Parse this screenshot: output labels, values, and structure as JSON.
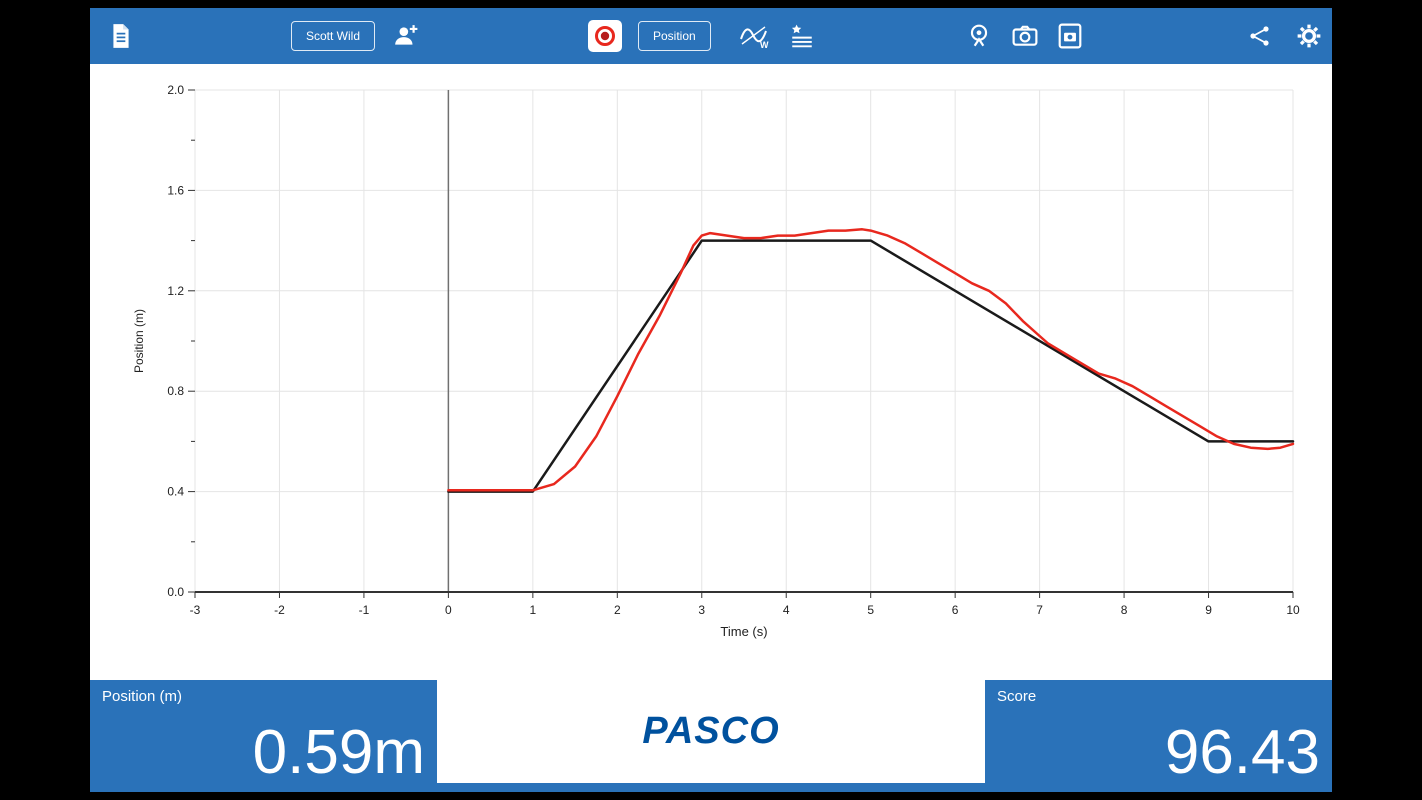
{
  "colors": {
    "toolbar_blue": "#2a72b9",
    "record_red": "#e8281e",
    "target_line": "#1a1a1a",
    "measured_line": "#e8281e",
    "pasco_blue": "#00519e"
  },
  "toolbar": {
    "user_button": "Scott Wild",
    "position_button": "Position",
    "icons": [
      "document-icon",
      "add-user-icon",
      "record-icon",
      "match-graph-icon",
      "journal-icon",
      "sensor-icon",
      "camera-icon",
      "snapshot-icon",
      "share-icon",
      "settings-icon"
    ]
  },
  "chart_data": {
    "type": "line",
    "title": "",
    "xlabel": "Time (s)",
    "ylabel": "Position (m)",
    "xlim": [
      -3,
      10
    ],
    "ylim": [
      0,
      2
    ],
    "x_ticks": [
      -3,
      -2,
      -1,
      0,
      1,
      2,
      3,
      4,
      5,
      6,
      7,
      8,
      9,
      10
    ],
    "y_ticks": [
      0.0,
      0.4,
      0.8,
      1.2,
      1.6,
      2.0
    ],
    "grid": true,
    "legend": "none",
    "series": [
      {
        "name": "target-path",
        "color": "#1a1a1a",
        "points": [
          [
            0,
            0.4
          ],
          [
            1,
            0.4
          ],
          [
            3,
            1.4
          ],
          [
            5,
            1.4
          ],
          [
            9,
            0.6
          ],
          [
            10,
            0.6
          ]
        ]
      },
      {
        "name": "measured-position",
        "color": "#e8281e",
        "points": [
          [
            0,
            0.405
          ],
          [
            0.5,
            0.405
          ],
          [
            1,
            0.405
          ],
          [
            1.25,
            0.43
          ],
          [
            1.5,
            0.5
          ],
          [
            1.75,
            0.62
          ],
          [
            2,
            0.78
          ],
          [
            2.25,
            0.95
          ],
          [
            2.5,
            1.1
          ],
          [
            2.75,
            1.27
          ],
          [
            2.9,
            1.38
          ],
          [
            3,
            1.42
          ],
          [
            3.1,
            1.43
          ],
          [
            3.3,
            1.42
          ],
          [
            3.5,
            1.41
          ],
          [
            3.7,
            1.41
          ],
          [
            3.9,
            1.42
          ],
          [
            4.1,
            1.42
          ],
          [
            4.3,
            1.43
          ],
          [
            4.5,
            1.44
          ],
          [
            4.7,
            1.44
          ],
          [
            4.9,
            1.445
          ],
          [
            5,
            1.44
          ],
          [
            5.2,
            1.42
          ],
          [
            5.4,
            1.39
          ],
          [
            5.6,
            1.35
          ],
          [
            5.8,
            1.31
          ],
          [
            6,
            1.27
          ],
          [
            6.2,
            1.23
          ],
          [
            6.4,
            1.2
          ],
          [
            6.6,
            1.15
          ],
          [
            6.8,
            1.08
          ],
          [
            7,
            1.02
          ],
          [
            7.1,
            0.99
          ],
          [
            7.3,
            0.95
          ],
          [
            7.5,
            0.91
          ],
          [
            7.7,
            0.87
          ],
          [
            7.9,
            0.85
          ],
          [
            8.1,
            0.82
          ],
          [
            8.3,
            0.78
          ],
          [
            8.5,
            0.74
          ],
          [
            8.7,
            0.7
          ],
          [
            8.9,
            0.66
          ],
          [
            9.1,
            0.62
          ],
          [
            9.3,
            0.59
          ],
          [
            9.5,
            0.575
          ],
          [
            9.7,
            0.57
          ],
          [
            9.85,
            0.575
          ],
          [
            10,
            0.59
          ]
        ]
      }
    ]
  },
  "bottom": {
    "position_label": "Position (m)",
    "position_value": "0.59m",
    "brand": "PASCO",
    "score_label": "Score",
    "score_value": "96.43"
  }
}
